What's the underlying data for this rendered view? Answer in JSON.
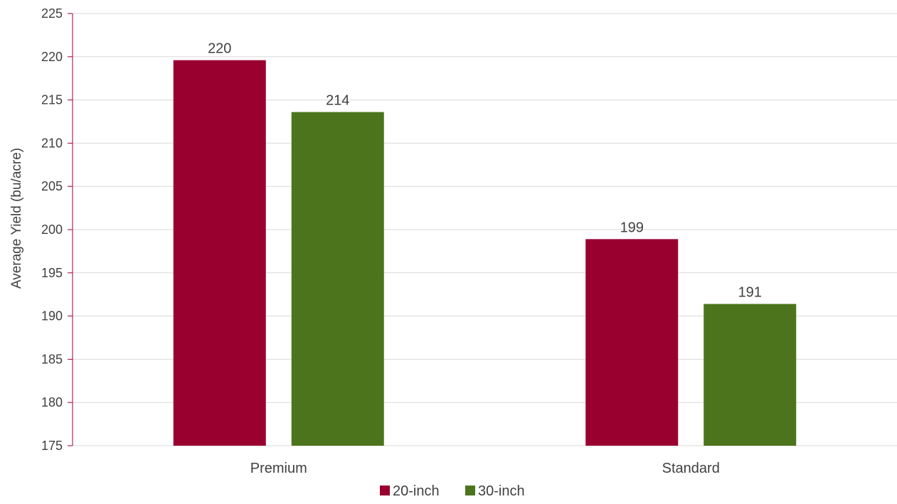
{
  "chart_data": {
    "type": "bar",
    "categories": [
      "Premium",
      "Standard"
    ],
    "series": [
      {
        "name": "20-inch",
        "values": [
          220,
          199
        ],
        "display_values": [
          219.6,
          198.9
        ],
        "color": "#990030"
      },
      {
        "name": "30-inch",
        "values": [
          214,
          191
        ],
        "display_values": [
          213.6,
          191.4
        ],
        "color": "#4c741c"
      }
    ],
    "ylabel": "Average Yield (bu/acre)",
    "xlabel": "",
    "ylim": [
      175,
      225
    ],
    "yticks": [
      175,
      180,
      185,
      190,
      195,
      200,
      205,
      210,
      215,
      220,
      225
    ],
    "grid": true,
    "legend": "bottom-center",
    "axis_color": "#990030",
    "grid_color": "#d9d9d9"
  }
}
